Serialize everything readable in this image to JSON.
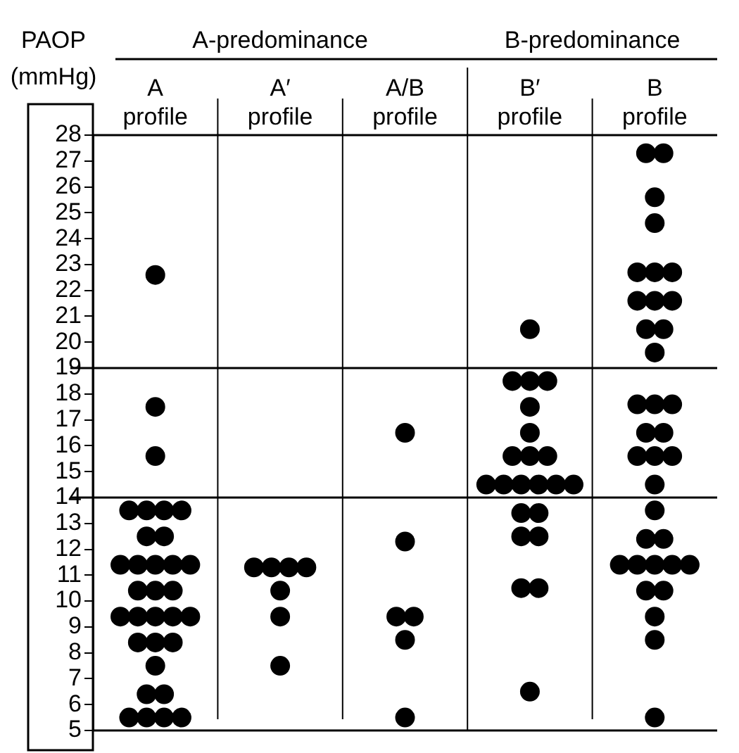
{
  "chart_data": {
    "type": "scatter",
    "ylabel": "PAOP (mmHg)",
    "categories": [
      "A profile",
      "A′ profile",
      "A/B profile",
      "B′ profile",
      "B profile"
    ],
    "annotations": [
      "A-predominance",
      "B-predominance"
    ],
    "series": [
      {
        "color": "#000000",
        "x": [
          "A profile",
          "A profile",
          "A profile",
          "A profile",
          "A profile",
          "A profile",
          "A profile",
          "A profile",
          "A profile",
          "A profile",
          "A profile",
          "A profile",
          "A profile",
          "A profile",
          "A profile",
          "A profile",
          "A profile",
          "A profile",
          "A profile",
          "A profile",
          "A profile",
          "A profile",
          "A profile",
          "A profile",
          "A profile",
          "A profile",
          "A profile",
          "A profile",
          "A profile",
          "A profile",
          "A profile",
          "A profile",
          "A′ profile",
          "A′ profile",
          "A′ profile",
          "A′ profile",
          "A′ profile",
          "A′ profile",
          "A′ profile",
          "A/B profile",
          "A/B profile",
          "A/B profile",
          "A/B profile",
          "A/B profile",
          "A/B profile",
          "B′ profile",
          "B′ profile",
          "B′ profile",
          "B′ profile",
          "B′ profile",
          "B′ profile",
          "B′ profile",
          "B′ profile",
          "B′ profile",
          "B′ profile",
          "B′ profile",
          "B′ profile",
          "B′ profile",
          "B′ profile",
          "B′ profile",
          "B′ profile",
          "B′ profile",
          "B′ profile",
          "B′ profile",
          "B′ profile",
          "B′ profile",
          "B′ profile",
          "B profile",
          "B profile",
          "B profile",
          "B profile",
          "B profile",
          "B profile",
          "B profile",
          "B profile",
          "B profile",
          "B profile",
          "B profile",
          "B profile",
          "B profile",
          "B profile",
          "B profile",
          "B profile",
          "B profile",
          "B profile",
          "B profile",
          "B profile",
          "B profile",
          "B profile",
          "B profile",
          "B profile",
          "B profile",
          "B profile",
          "B profile",
          "B profile",
          "B profile",
          "B profile",
          "B profile",
          "B profile",
          "B profile",
          "B profile",
          "B profile"
        ],
        "values": [
          22.6,
          17.5,
          15.6,
          13.5,
          13.5,
          13.5,
          13.5,
          12.5,
          12.5,
          11.4,
          11.4,
          11.4,
          11.4,
          11.4,
          10.4,
          10.4,
          10.4,
          9.4,
          9.4,
          9.4,
          9.4,
          9.4,
          8.4,
          8.4,
          8.4,
          7.5,
          6.4,
          6.4,
          5.5,
          5.5,
          5.5,
          5.5,
          11.3,
          11.3,
          11.3,
          11.3,
          10.4,
          9.4,
          7.5,
          16.5,
          12.3,
          9.4,
          9.4,
          8.5,
          5.5,
          20.5,
          18.5,
          18.5,
          18.5,
          17.5,
          16.5,
          15.6,
          15.6,
          15.6,
          14.5,
          14.5,
          14.5,
          14.5,
          14.5,
          14.5,
          13.4,
          13.4,
          12.5,
          12.5,
          10.5,
          10.5,
          6.5,
          27.3,
          27.3,
          25.6,
          24.6,
          22.7,
          22.7,
          22.7,
          21.6,
          21.6,
          21.6,
          20.5,
          20.5,
          19.6,
          17.6,
          17.6,
          17.6,
          16.5,
          16.5,
          15.6,
          15.6,
          15.6,
          14.5,
          13.5,
          12.4,
          12.4,
          11.4,
          11.4,
          11.4,
          11.4,
          11.4,
          10.4,
          10.4,
          9.4,
          8.5,
          5.5
        ]
      }
    ],
    "ylim": [
      5,
      28
    ],
    "yticks": [
      5,
      6,
      7,
      8,
      9,
      10,
      11,
      12,
      13,
      14,
      15,
      16,
      17,
      18,
      19,
      20,
      21,
      22,
      23,
      24,
      25,
      26,
      27,
      28
    ],
    "ref_lines": [
      {
        "axis": "y",
        "value": 19,
        "color": "#000000"
      },
      {
        "axis": "y",
        "value": 14,
        "color": "#000000"
      }
    ],
    "grid": false,
    "legend": false,
    "marker": "circle"
  }
}
